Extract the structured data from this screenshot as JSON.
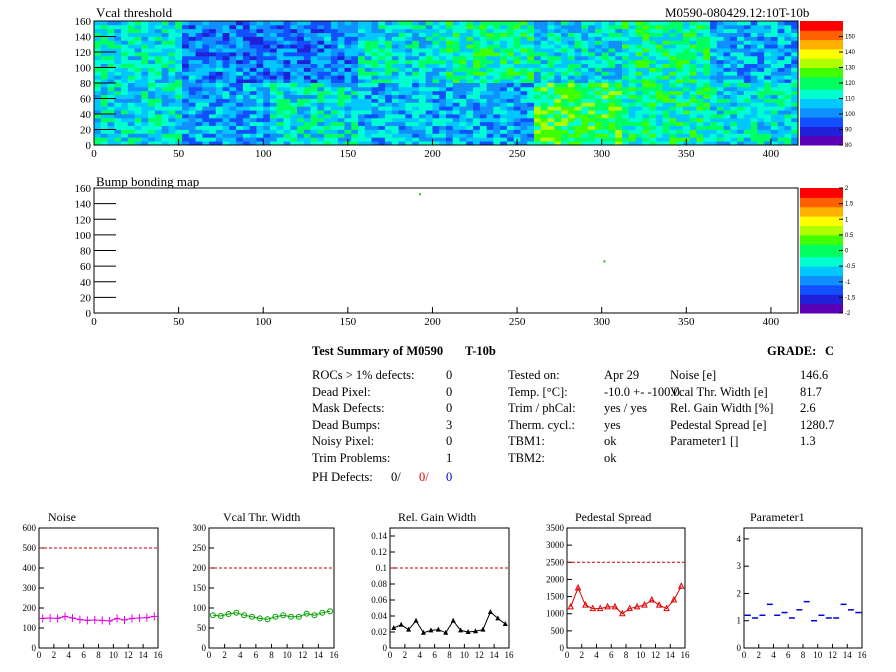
{
  "module_id": "M0590-080429.12:10T-10b",
  "colors": {
    "palette": [
      "#5a00b4",
      "#2020d8",
      "#1050ff",
      "#1090ff",
      "#00c8ff",
      "#00ffd0",
      "#00ff60",
      "#40ff00",
      "#b0ff00",
      "#ffff00",
      "#ffb000",
      "#ff6000",
      "#ff0000"
    ],
    "ref_line": "#d00000",
    "noise": "#e000e0",
    "vcal_width": "#00a000",
    "gain_width": "#000000",
    "pedestal": "#e00000",
    "parameter1": "#0000d0"
  },
  "summary": {
    "title": "Test Summary of M0590",
    "tag": "T-10b",
    "grade_label": "GRADE:",
    "grade": "C",
    "defects": [
      {
        "label": "ROCs > 1% defects:",
        "value": "0"
      },
      {
        "label": "Dead Pixel:",
        "value": "0"
      },
      {
        "label": "Mask Defects:",
        "value": "0"
      },
      {
        "label": "Dead Bumps:",
        "value": "3"
      },
      {
        "label": "Noisy Pixel:",
        "value": "0"
      },
      {
        "label": "Trim Problems:",
        "value": "1"
      }
    ],
    "ph_label": "PH Defects:",
    "ph_values": [
      "0/",
      "0/",
      "0"
    ],
    "conditions": [
      {
        "label": "Tested on:",
        "value": "Apr 29"
      },
      {
        "label": "Temp. [°C]:",
        "value": "-10.0 +- -100.0"
      },
      {
        "label": "Trim / phCal:",
        "value": "yes / yes"
      },
      {
        "label": "Therm. cycl.:",
        "value": "yes"
      },
      {
        "label": "TBM1:",
        "value": "ok"
      },
      {
        "label": "TBM2:",
        "value": "ok"
      }
    ],
    "results": [
      {
        "label": "Noise [e]",
        "value": "146.6"
      },
      {
        "label": "Vcal Thr. Width [e]",
        "value": "81.7"
      },
      {
        "label": "Rel. Gain Width [%]",
        "value": "2.6"
      },
      {
        "label": "Pedestal Spread [e]",
        "value": "1280.7"
      },
      {
        "label": "Parameter1 []",
        "value": "1.3"
      }
    ]
  },
  "chart_data": [
    {
      "type": "heatmap",
      "title": "Vcal threshold",
      "xlim": [
        0,
        416
      ],
      "ylim": [
        0,
        160
      ],
      "x_ticks": [
        0,
        50,
        100,
        150,
        200,
        250,
        300,
        350,
        400
      ],
      "y_ticks": [
        0,
        20,
        40,
        60,
        80,
        100,
        120,
        140,
        160
      ],
      "z_ticks": [
        80,
        90,
        100,
        110,
        120,
        130,
        140,
        150
      ],
      "zlim": [
        80,
        160
      ],
      "roc_grid": {
        "columns": 8,
        "rows": 2,
        "cols_per_roc": 52,
        "rows_per_roc": 80
      },
      "roc_mean_threshold": {
        "top": [
          112,
          100,
          100,
          112,
          116,
          110,
          116,
          106
        ],
        "bottom": [
          110,
          104,
          112,
          106,
          104,
          122,
          116,
          112
        ]
      }
    },
    {
      "type": "heatmap",
      "title": "Bump bonding map",
      "xlim": [
        0,
        416
      ],
      "ylim": [
        0,
        160
      ],
      "x_ticks": [
        0,
        50,
        100,
        150,
        200,
        250,
        300,
        350,
        400
      ],
      "y_ticks": [
        0,
        20,
        40,
        60,
        80,
        100,
        120,
        140,
        160
      ],
      "z_ticks": [
        -2,
        -1.5,
        -1,
        -0.5,
        0,
        0.5,
        1,
        1.5,
        2
      ],
      "zlim": [
        -2,
        2
      ],
      "hits": [
        {
          "x": 192,
          "y": 152
        },
        {
          "x": 301,
          "y": 66
        }
      ]
    },
    {
      "type": "line",
      "title": "Noise",
      "x": [
        0,
        1,
        2,
        3,
        4,
        5,
        6,
        7,
        8,
        9,
        10,
        11,
        12,
        13,
        14,
        15
      ],
      "values": [
        148,
        150,
        148,
        158,
        150,
        142,
        138,
        140,
        138,
        135,
        148,
        140,
        148,
        150,
        152,
        158
      ],
      "ref": 500,
      "xlim": [
        0,
        16
      ],
      "ylim": [
        0,
        600
      ],
      "x_ticks": [
        0,
        2,
        4,
        6,
        8,
        10,
        12,
        14,
        16
      ],
      "y_ticks": [
        0,
        100,
        200,
        300,
        400,
        500,
        600
      ]
    },
    {
      "type": "line",
      "title": "Vcal Thr. Width",
      "x": [
        0,
        1,
        2,
        3,
        4,
        5,
        6,
        7,
        8,
        9,
        10,
        11,
        12,
        13,
        14,
        15
      ],
      "values": [
        82,
        80,
        85,
        88,
        82,
        78,
        74,
        72,
        78,
        82,
        78,
        78,
        86,
        82,
        88,
        92
      ],
      "ref": 200,
      "xlim": [
        0,
        16
      ],
      "ylim": [
        0,
        300
      ],
      "x_ticks": [
        0,
        2,
        4,
        6,
        8,
        10,
        12,
        14,
        16
      ],
      "y_ticks": [
        0,
        50,
        100,
        150,
        200,
        250,
        300
      ]
    },
    {
      "type": "line",
      "title": "Rel. Gain Width",
      "x": [
        0,
        1,
        2,
        3,
        4,
        5,
        6,
        7,
        8,
        9,
        10,
        11,
        12,
        13,
        14,
        15
      ],
      "values": [
        0.025,
        0.029,
        0.023,
        0.034,
        0.019,
        0.022,
        0.023,
        0.019,
        0.034,
        0.022,
        0.02,
        0.021,
        0.023,
        0.045,
        0.037,
        0.03
      ],
      "ref": 0.1,
      "xlim": [
        0,
        16
      ],
      "ylim": [
        0,
        0.15
      ],
      "x_ticks": [
        0,
        2,
        4,
        6,
        8,
        10,
        12,
        14,
        16
      ],
      "y_ticks": [
        0,
        0.02,
        0.04,
        0.06,
        0.08,
        0.1,
        0.12,
        0.14
      ]
    },
    {
      "type": "line",
      "title": "Pedestal Spread",
      "x": [
        0,
        1,
        2,
        3,
        4,
        5,
        6,
        7,
        8,
        9,
        10,
        11,
        12,
        13,
        14,
        15
      ],
      "values": [
        1200,
        1750,
        1250,
        1150,
        1150,
        1200,
        1200,
        1000,
        1150,
        1200,
        1250,
        1400,
        1250,
        1150,
        1400,
        1800
      ],
      "ref": 2500,
      "xlim": [
        0,
        16
      ],
      "ylim": [
        0,
        3500
      ],
      "x_ticks": [
        0,
        2,
        4,
        6,
        8,
        10,
        12,
        14,
        16
      ],
      "y_ticks": [
        0,
        500,
        1000,
        1500,
        2000,
        2500,
        3000,
        3500
      ]
    },
    {
      "type": "scatter",
      "title": "Parameter1",
      "x": [
        0,
        1,
        2,
        3,
        4,
        5,
        6,
        7,
        8,
        9,
        10,
        11,
        12,
        13,
        14,
        15
      ],
      "values": [
        1.2,
        1.1,
        1.2,
        1.6,
        1.2,
        1.3,
        1.1,
        1.4,
        1.7,
        1.0,
        1.2,
        1.1,
        1.1,
        1.6,
        1.4,
        1.3
      ],
      "xlim": [
        0,
        16
      ],
      "ylim": [
        0,
        4.4
      ],
      "x_ticks": [
        0,
        2,
        4,
        6,
        8,
        10,
        12,
        14,
        16
      ],
      "y_ticks": [
        0,
        1,
        2,
        3,
        4
      ]
    }
  ]
}
